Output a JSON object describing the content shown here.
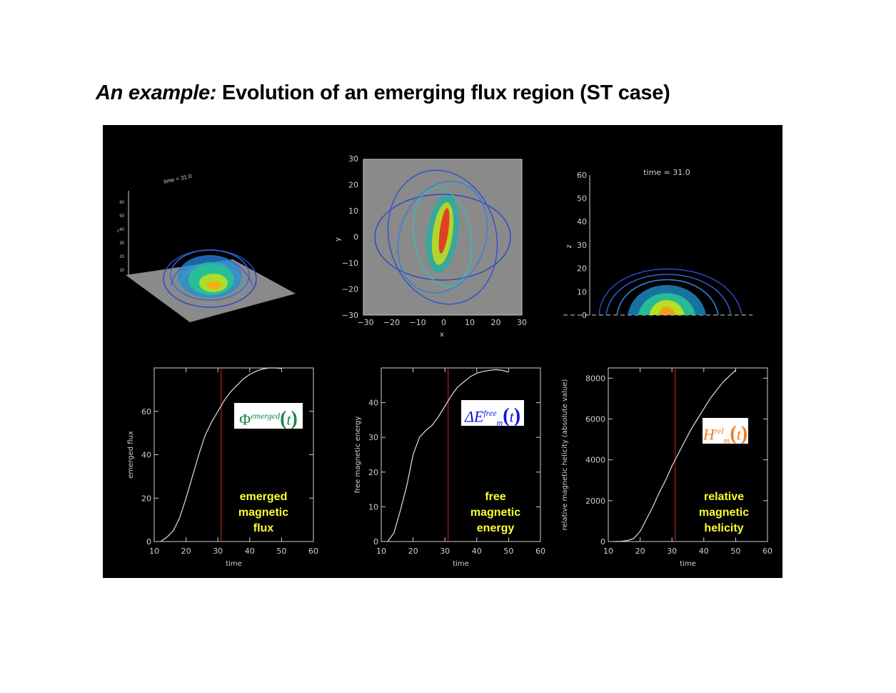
{
  "title": {
    "italic": "An example:",
    "rest": "Evolution of an emerging flux region (ST case)"
  },
  "views": {
    "perspective": {
      "time_label": "time = 31.0",
      "z_ticks": [
        "10",
        "20",
        "30",
        "40",
        "50",
        "60"
      ],
      "z_label": "z"
    },
    "top": {
      "x_ticks": [
        "−30",
        "−20",
        "−10",
        "0",
        "10",
        "20",
        "30"
      ],
      "y_ticks": [
        "−30",
        "−20",
        "−10",
        "0",
        "10",
        "20",
        "30"
      ],
      "xlabel": "x",
      "ylabel": "y"
    },
    "side": {
      "time_label": "time = 31.0",
      "z_ticks": [
        "0",
        "10",
        "20",
        "30",
        "40",
        "50",
        "60"
      ],
      "zlabel": "z"
    }
  },
  "colors": {
    "accent_green": "#17874a",
    "accent_blue": "#1010e0",
    "accent_orange": "#f07a1a",
    "caption": "#ffff33"
  },
  "formulas": {
    "flux": {
      "main": "Φ",
      "sup": "emerged",
      "arg": "t"
    },
    "energy": {
      "main": "ΔE",
      "sup": "free",
      "sub": "m",
      "arg": "t"
    },
    "helicity": {
      "main": "H",
      "sup": "rel",
      "sub": "m",
      "arg": "t"
    }
  },
  "captions": {
    "flux": [
      "emerged",
      "magnetic",
      "flux"
    ],
    "energy": [
      "free",
      "magnetic",
      "energy"
    ],
    "helicity": [
      "relative",
      "magnetic",
      "helicity"
    ]
  },
  "chart_data": [
    {
      "type": "line",
      "xlabel": "time",
      "ylabel": "emerged flux",
      "xlim": [
        10,
        60
      ],
      "ylim": [
        0,
        80
      ],
      "x_ticks": [
        10,
        20,
        30,
        40,
        50,
        60
      ],
      "y_ticks": [
        0,
        20,
        40,
        60
      ],
      "marker_time": 31,
      "series": [
        {
          "x": [
            12,
            14,
            16,
            18,
            20,
            22,
            24,
            26,
            28,
            30,
            32,
            34,
            36,
            38,
            40,
            42,
            44,
            46,
            48,
            50
          ],
          "values": [
            0,
            2,
            5,
            11,
            20,
            30,
            40,
            49,
            55,
            60,
            65,
            69,
            72,
            75,
            77,
            78.5,
            79.5,
            80,
            80,
            79.8
          ]
        }
      ]
    },
    {
      "type": "line",
      "xlabel": "time",
      "ylabel": "free magnetic energy",
      "xlim": [
        10,
        60
      ],
      "ylim": [
        0,
        50
      ],
      "x_ticks": [
        10,
        20,
        30,
        40,
        50,
        60
      ],
      "y_ticks": [
        0,
        10,
        20,
        30,
        40
      ],
      "marker_time": 31,
      "series": [
        {
          "x": [
            12,
            14,
            16,
            18,
            20,
            22,
            24,
            26,
            28,
            30,
            32,
            34,
            36,
            38,
            40,
            42,
            44,
            46,
            48,
            50
          ],
          "values": [
            0,
            2.5,
            9,
            16,
            25,
            30,
            32,
            33.5,
            36,
            39,
            42,
            44.5,
            46,
            47.5,
            48.5,
            49,
            49.3,
            49.5,
            49.3,
            48.8
          ]
        }
      ]
    },
    {
      "type": "line",
      "xlabel": "time",
      "ylabel": "relative magnetic helicity (absolute value)",
      "xlim": [
        10,
        60
      ],
      "ylim": [
        0,
        8500
      ],
      "x_ticks": [
        10,
        20,
        30,
        40,
        50,
        60
      ],
      "y_ticks": [
        0,
        2000,
        4000,
        6000,
        8000
      ],
      "marker_time": 31,
      "series": [
        {
          "x": [
            12,
            14,
            16,
            18,
            20,
            22,
            24,
            26,
            28,
            30,
            32,
            34,
            36,
            38,
            40,
            42,
            44,
            46,
            48,
            50
          ],
          "values": [
            0,
            10,
            50,
            150,
            500,
            1100,
            1700,
            2400,
            3000,
            3700,
            4300,
            4900,
            5500,
            6000,
            6500,
            7000,
            7400,
            7800,
            8100,
            8400
          ]
        }
      ]
    }
  ]
}
